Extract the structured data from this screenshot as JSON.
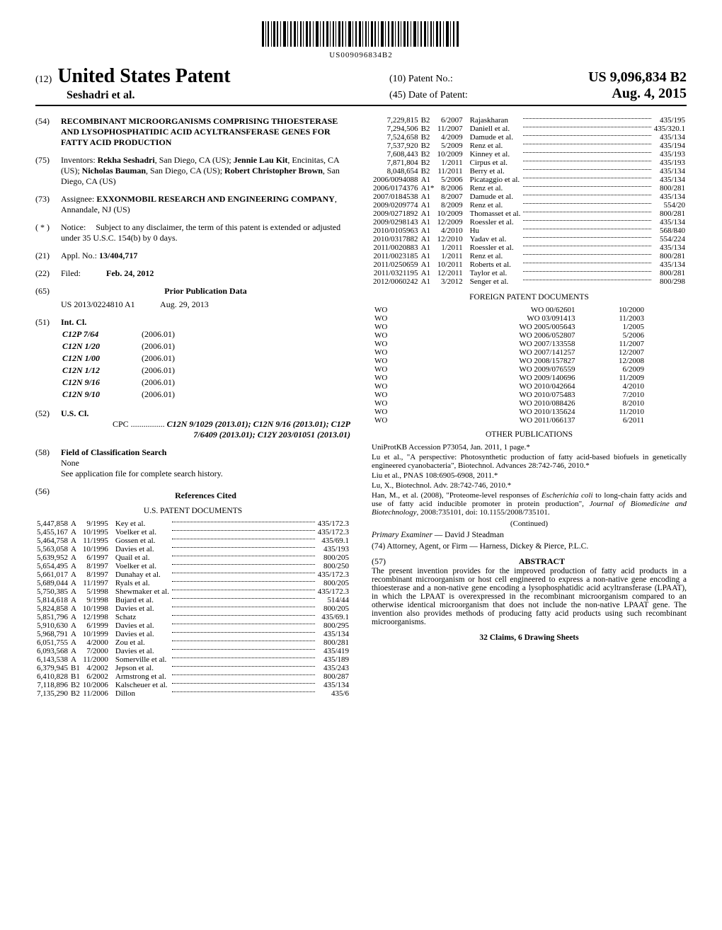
{
  "barcode_text": "US009096834B2",
  "header": {
    "twelve": "(12)",
    "usp": "United States Patent",
    "authors": "Seshadri et al.",
    "pno_num": "(10)",
    "pno_label": "Patent No.:",
    "pno": "US 9,096,834 B2",
    "dop_num": "(45)",
    "dop_label": "Date of Patent:",
    "dop": "Aug. 4, 2015"
  },
  "f54": {
    "num": "(54)",
    "title": "RECOMBINANT MICROORGANISMS COMPRISING THIOESTERASE AND LYSOPHOSPHATIDIC ACID ACYLTRANSFERASE GENES FOR FATTY ACID PRODUCTION"
  },
  "f75": {
    "num": "(75)",
    "label": "Inventors:",
    "text": "Rekha Seshadri, San Diego, CA (US); Jennie Lau Kit, Encinitas, CA (US); Nicholas Bauman, San Diego, CA (US); Robert Christopher Brown, San Diego, CA (US)"
  },
  "f73": {
    "num": "(73)",
    "label": "Assignee:",
    "name": "EXXONMOBIL RESEARCH AND ENGINEERING COMPANY",
    "loc": ", Annandale, NJ (US)"
  },
  "fnotice": {
    "num": "( * )",
    "label": "Notice:",
    "text": "Subject to any disclaimer, the term of this patent is extended or adjusted under 35 U.S.C. 154(b) by 0 days."
  },
  "f21": {
    "num": "(21)",
    "label": "Appl. No.:",
    "val": "13/404,717"
  },
  "f22": {
    "num": "(22)",
    "label": "Filed:",
    "val": "Feb. 24, 2012"
  },
  "f65": {
    "num": "(65)",
    "heading": "Prior Publication Data",
    "pub": "US 2013/0224810 A1",
    "date": "Aug. 29, 2013"
  },
  "f51": {
    "num": "(51)",
    "label": "Int. Cl.",
    "rows": [
      [
        "C12P 7/64",
        "(2006.01)"
      ],
      [
        "C12N 1/20",
        "(2006.01)"
      ],
      [
        "C12N 1/00",
        "(2006.01)"
      ],
      [
        "C12N 1/12",
        "(2006.01)"
      ],
      [
        "C12N 9/16",
        "(2006.01)"
      ],
      [
        "C12N 9/10",
        "(2006.01)"
      ]
    ]
  },
  "f52": {
    "num": "(52)",
    "label": "U.S. Cl.",
    "cpc_label": "CPC",
    "cpc": "C12N 9/1029 (2013.01); C12N 9/16 (2013.01); C12P 7/6409 (2013.01); C12Y 203/01051 (2013.01)"
  },
  "f58": {
    "num": "(58)",
    "label": "Field of Classification Search",
    "none": "None",
    "see": "See application file for complete search history."
  },
  "f56": {
    "num": "(56)",
    "heading": "References Cited",
    "us_heading": "U.S. PATENT DOCUMENTS"
  },
  "us_patents_left": [
    [
      "5,447,858",
      "A",
      "9/1995",
      "Key et al.",
      "435/172.3"
    ],
    [
      "5,455,167",
      "A",
      "10/1995",
      "Voelker et al.",
      "435/172.3"
    ],
    [
      "5,464,758",
      "A",
      "11/1995",
      "Gossen et al.",
      "435/69.1"
    ],
    [
      "5,563,058",
      "A",
      "10/1996",
      "Davies et al.",
      "435/193"
    ],
    [
      "5,639,952",
      "A",
      "6/1997",
      "Quail et al.",
      "800/205"
    ],
    [
      "5,654,495",
      "A",
      "8/1997",
      "Voelker et al.",
      "800/250"
    ],
    [
      "5,661,017",
      "A",
      "8/1997",
      "Dunahay et al.",
      "435/172.3"
    ],
    [
      "5,689,044",
      "A",
      "11/1997",
      "Ryals et al.",
      "800/205"
    ],
    [
      "5,750,385",
      "A",
      "5/1998",
      "Shewmaker et al.",
      "435/172.3"
    ],
    [
      "5,814,618",
      "A",
      "9/1998",
      "Bujard et al.",
      "514/44"
    ],
    [
      "5,824,858",
      "A",
      "10/1998",
      "Davies et al.",
      "800/205"
    ],
    [
      "5,851,796",
      "A",
      "12/1998",
      "Schatz",
      "435/69.1"
    ],
    [
      "5,910,630",
      "A",
      "6/1999",
      "Davies et al.",
      "800/295"
    ],
    [
      "5,968,791",
      "A",
      "10/1999",
      "Davies et al.",
      "435/134"
    ],
    [
      "6,051,755",
      "A",
      "4/2000",
      "Zou et al.",
      "800/281"
    ],
    [
      "6,093,568",
      "A",
      "7/2000",
      "Davies et al.",
      "435/419"
    ],
    [
      "6,143,538",
      "A",
      "11/2000",
      "Somerville et al.",
      "435/189"
    ],
    [
      "6,379,945",
      "B1",
      "4/2002",
      "Jepson et al.",
      "435/243"
    ],
    [
      "6,410,828",
      "B1",
      "6/2002",
      "Armstrong et al.",
      "800/287"
    ],
    [
      "7,118,896",
      "B2",
      "10/2006",
      "Kalscheuer et al.",
      "435/134"
    ],
    [
      "7,135,290",
      "B2",
      "11/2006",
      "Dillon",
      "435/6"
    ]
  ],
  "us_patents_right": [
    [
      "7,229,815",
      "B2",
      "6/2007",
      "Rajaskharan",
      "435/195"
    ],
    [
      "7,294,506",
      "B2",
      "11/2007",
      "Daniell et al.",
      "435/320.1"
    ],
    [
      "7,524,658",
      "B2",
      "4/2009",
      "Damude et al.",
      "435/134"
    ],
    [
      "7,537,920",
      "B2",
      "5/2009",
      "Renz et al.",
      "435/194"
    ],
    [
      "7,608,443",
      "B2",
      "10/2009",
      "Kinney et al.",
      "435/193"
    ],
    [
      "7,871,804",
      "B2",
      "1/2011",
      "Cirpus et al.",
      "435/193"
    ],
    [
      "8,048,654",
      "B2",
      "11/2011",
      "Berry et al.",
      "435/134"
    ],
    [
      "2006/0094088",
      "A1",
      "5/2006",
      "Picataggio et al.",
      "435/134"
    ],
    [
      "2006/0174376",
      "A1*",
      "8/2006",
      "Renz et al.",
      "800/281"
    ],
    [
      "2007/0184538",
      "A1",
      "8/2007",
      "Damude et al.",
      "435/134"
    ],
    [
      "2009/0209774",
      "A1",
      "8/2009",
      "Renz et al.",
      "554/20"
    ],
    [
      "2009/0271892",
      "A1",
      "10/2009",
      "Thomasset et al.",
      "800/281"
    ],
    [
      "2009/0298143",
      "A1",
      "12/2009",
      "Roessler et al.",
      "435/134"
    ],
    [
      "2010/0105963",
      "A1",
      "4/2010",
      "Hu",
      "568/840"
    ],
    [
      "2010/0317882",
      "A1",
      "12/2010",
      "Yadav et al.",
      "554/224"
    ],
    [
      "2011/0020883",
      "A1",
      "1/2011",
      "Roessler et al.",
      "435/134"
    ],
    [
      "2011/0023185",
      "A1",
      "1/2011",
      "Renz et al.",
      "800/281"
    ],
    [
      "2011/0250659",
      "A1",
      "10/2011",
      "Roberts et al.",
      "435/134"
    ],
    [
      "2011/0321195",
      "A1",
      "12/2011",
      "Taylor et al.",
      "800/281"
    ],
    [
      "2012/0060242",
      "A1",
      "3/2012",
      "Senger et al.",
      "800/298"
    ]
  ],
  "fp_heading": "FOREIGN PATENT DOCUMENTS",
  "foreign_patents": [
    [
      "WO",
      "WO 00/62601",
      "10/2000"
    ],
    [
      "WO",
      "WO 03/091413",
      "11/2003"
    ],
    [
      "WO",
      "WO 2005/005643",
      "1/2005"
    ],
    [
      "WO",
      "WO 2006/052807",
      "5/2006"
    ],
    [
      "WO",
      "WO 2007/133558",
      "11/2007"
    ],
    [
      "WO",
      "WO 2007/141257",
      "12/2007"
    ],
    [
      "WO",
      "WO 2008/157827",
      "12/2008"
    ],
    [
      "WO",
      "WO 2009/076559",
      "6/2009"
    ],
    [
      "WO",
      "WO 2009/140696",
      "11/2009"
    ],
    [
      "WO",
      "WO 2010/042664",
      "4/2010"
    ],
    [
      "WO",
      "WO 2010/075483",
      "7/2010"
    ],
    [
      "WO",
      "WO 2010/088426",
      "8/2010"
    ],
    [
      "WO",
      "WO 2010/135624",
      "11/2010"
    ],
    [
      "WO",
      "WO 2011/066137",
      "6/2011"
    ]
  ],
  "other_heading": "OTHER PUBLICATIONS",
  "other_pubs": [
    "UniProtKB Accession P73054, Jan. 2011, 1 page.*",
    "Lu et al., \"A perspective: Photosynthetic production of fatty acid-based biofuels in genetically engineered cyanobacteria\", Biotechnol. Advances 28:742-746, 2010.*",
    "Liu et al., PNAS 108:6905-6908, 2011.*",
    "Lu, X., Biotechnol. Adv. 28:742-746, 2010.*",
    "Han, M., et al. (2008), \"Proteome-level responses of Escherichia coli to long-chain fatty acids and use of fatty acid inducible promoter in protein production\", Journal of Biomedicine and Biotechnology, 2008:735101, doi: 10.1155/2008/735101."
  ],
  "continued": "(Continued)",
  "examiner_label": "Primary Examiner",
  "examiner": " — David J Steadman",
  "attorney_label": "(74) Attorney, Agent, or Firm",
  "attorney": " — Harness, Dickey & Pierce, P.L.C.",
  "abstract_num": "(57)",
  "abstract_heading": "ABSTRACT",
  "abstract": "The present invention provides for the improved production of fatty acid products in a recombinant microorganism or host cell engineered to express a non-native gene encoding a thioesterase and a non-native gene encoding a lysophosphatidic acid acyltransferase (LPAAT), in which the LPAAT is overexpressed in the recombinant microorganism compared to an otherwise identical microorganism that does not include the non-native LPAAT gene. The invention also provides methods of producing fatty acid products using such recombinant microorganisms.",
  "claims": "32 Claims, 6 Drawing Sheets"
}
